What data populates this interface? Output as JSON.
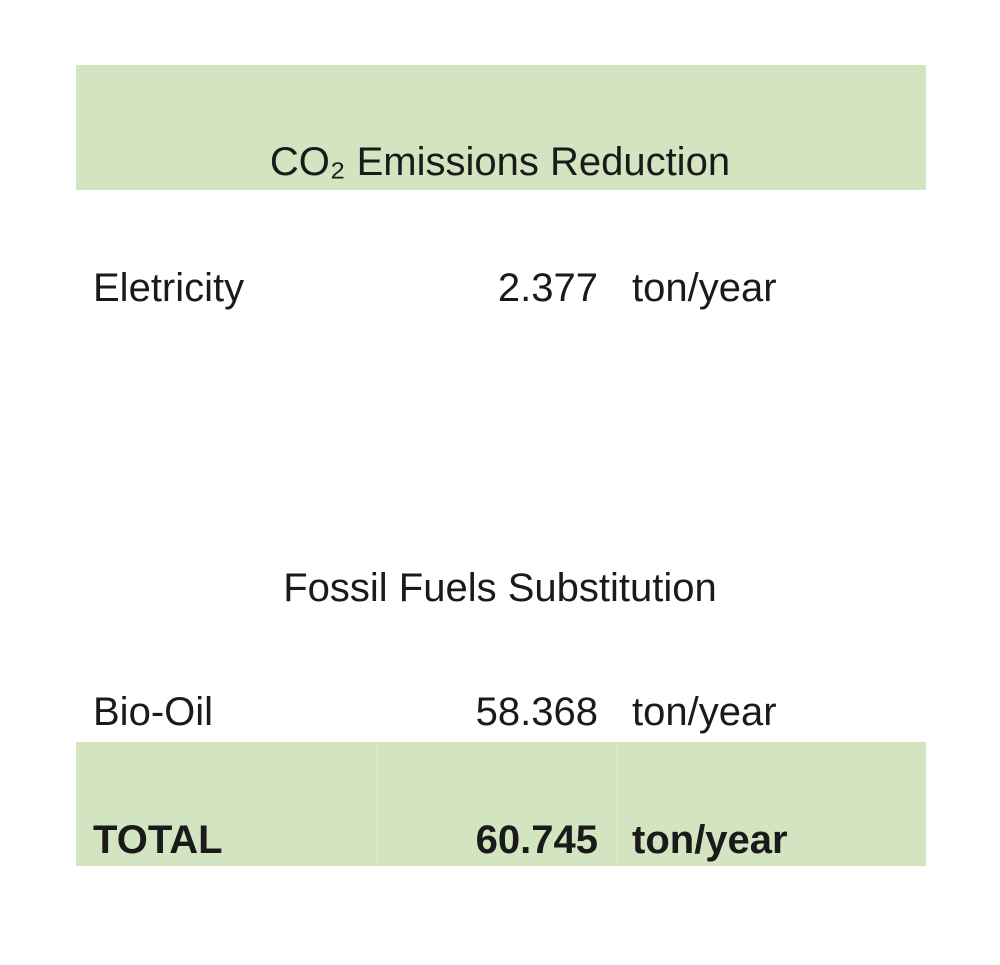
{
  "header": {
    "title": "CO₂ Emissions Reduction"
  },
  "table": {
    "rows": [
      [
        "Eletricity",
        "2.377",
        "ton/year"
      ],
      [
        "Bio-Oil",
        "58.368",
        "ton/year"
      ]
    ]
  },
  "section": {
    "title": "Fossil Fuels Substitution"
  },
  "total": [
    "TOTAL",
    "60.745",
    "ton/year"
  ]
}
